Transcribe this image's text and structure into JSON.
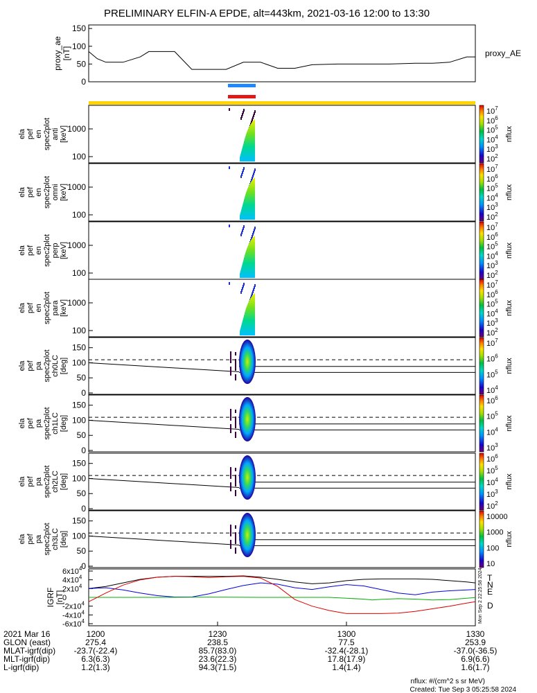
{
  "title": "PRELIMINARY ELFIN-A EPDE, alt=443km, 2021-03-16 12:00 to 13:30",
  "bars": {
    "blue": "#1e88ff",
    "red": "#e01818",
    "yellow": "#ffd400"
  },
  "chart_data": {
    "type": "line",
    "time_range": [
      "2021-03-16 12:00",
      "2021-03-16 13:30"
    ],
    "proxy_ae": {
      "ylabel": [
        "proxy_ae",
        "[nT]"
      ],
      "legend": "proxy_AE",
      "ylim": [
        0,
        160
      ],
      "yticks": [
        "150",
        "100",
        "50",
        "0"
      ],
      "t": [
        0,
        2,
        4,
        8,
        12,
        14,
        16,
        20,
        24,
        26,
        32,
        36,
        40,
        44,
        48,
        52,
        58,
        64,
        70,
        76,
        80,
        84,
        88,
        90
      ],
      "v": [
        85,
        65,
        55,
        55,
        70,
        85,
        85,
        85,
        35,
        35,
        35,
        55,
        55,
        38,
        38,
        48,
        50,
        50,
        50,
        52,
        52,
        55,
        70,
        70
      ]
    },
    "spectrograms": [
      {
        "ylabel": [
          "ela",
          "pef",
          "en",
          "spec2plot",
          "anti",
          "[keV]"
        ],
        "yticks": [
          "1000",
          "100"
        ],
        "ctick_labels": [
          "10^7",
          "10^6",
          "10^5",
          "10^4",
          "10^3",
          "10^2"
        ],
        "clabel": "nflux"
      },
      {
        "ylabel": [
          "ela",
          "pef",
          "en",
          "spec2plot",
          "omni",
          "[keV]"
        ],
        "yticks": [
          "1000",
          "100"
        ],
        "ctick_labels": [
          "10^7",
          "10^6",
          "10^5",
          "10^4",
          "10^3",
          "10^2"
        ],
        "clabel": "nflux"
      },
      {
        "ylabel": [
          "ela",
          "pef",
          "en",
          "spec2plot",
          "perp",
          "[keV]"
        ],
        "yticks": [
          "1000",
          "100"
        ],
        "ctick_labels": [
          "10^7",
          "10^6",
          "10^5",
          "10^4",
          "10^3",
          "10^2"
        ],
        "clabel": "nflux"
      },
      {
        "ylabel": [
          "ela",
          "pef",
          "en",
          "spec2plot",
          "para",
          "[keV]"
        ],
        "yticks": [
          "1000",
          "100"
        ],
        "ctick_labels": [
          "10^7",
          "10^6",
          "10^5",
          "10^4",
          "10^3",
          "10^2"
        ],
        "clabel": "nflux"
      }
    ],
    "pitch_angle": [
      {
        "ylabel": [
          "ela",
          "pef",
          "pa",
          "spec2plot",
          "ch0LC",
          "[deg]"
        ],
        "yticks": [
          "150",
          "100",
          "50",
          "0"
        ],
        "ctick_labels": [
          "10^7",
          "10^6",
          "10^5",
          "10^4"
        ],
        "clabel": "nflux"
      },
      {
        "ylabel": [
          "ela",
          "pef",
          "pa",
          "spec2plot",
          "ch1LC",
          "[deg]"
        ],
        "yticks": [
          "150",
          "100",
          "50",
          "0"
        ],
        "ctick_labels": [
          "10^6",
          "10^5",
          "10^4",
          "10^3"
        ],
        "clabel": "nflux"
      },
      {
        "ylabel": [
          "ela",
          "pef",
          "pa",
          "spec2plot",
          "ch2LC",
          "[deg]"
        ],
        "yticks": [
          "150",
          "100",
          "50",
          "0"
        ],
        "ctick_labels": [
          "10^6",
          "10^5",
          "10^4",
          "10^3",
          "10^2"
        ],
        "clabel": "nflux"
      },
      {
        "ylabel": [
          "ela",
          "pef",
          "pa",
          "spec2plot",
          "ch3LC",
          "[deg]"
        ],
        "yticks": [
          "150",
          "100",
          "50",
          "0"
        ],
        "ctick_labels": [
          "10000",
          "1000",
          "100",
          "10"
        ],
        "clabel": "nflux"
      }
    ],
    "igrf": {
      "ylabel": [
        "IGRF",
        "[nT]"
      ],
      "yticks": [
        "6x10^4",
        "4x10^4",
        "2x10^4",
        "0",
        "-2x10^4",
        "-4x10^4",
        "-6x10^4"
      ],
      "ylim": [
        -60000,
        60000
      ],
      "series": [
        {
          "name": "T",
          "color": "#000000",
          "t": [
            0,
            4,
            8,
            12,
            16,
            20,
            24,
            28,
            32,
            36,
            40,
            44,
            48,
            52,
            56,
            60,
            64,
            68,
            72,
            76,
            80,
            84,
            88,
            90
          ],
          "v": [
            20000,
            25000,
            33000,
            41000,
            46000,
            48000,
            48000,
            48000,
            48000,
            49000,
            46000,
            41000,
            35000,
            31000,
            33000,
            38000,
            41000,
            42000,
            42000,
            42000,
            41000,
            38000,
            35000,
            33000
          ]
        },
        {
          "name": "N",
          "color": "#0000dd",
          "t": [
            0,
            4,
            8,
            12,
            16,
            20,
            24,
            28,
            32,
            36,
            40,
            44,
            48,
            52,
            56,
            60,
            64,
            68,
            72,
            76,
            80,
            84,
            88,
            90
          ],
          "v": [
            20000,
            22000,
            17000,
            10000,
            4000,
            800,
            800,
            8000,
            18000,
            27000,
            33000,
            30000,
            22000,
            18000,
            24000,
            29000,
            26000,
            18000,
            10000,
            6000,
            12000,
            15000,
            17000,
            18000
          ]
        },
        {
          "name": "E",
          "color": "#00b000",
          "t": [
            0,
            8,
            16,
            24,
            32,
            40,
            48,
            56,
            60,
            64,
            66,
            68,
            72,
            76,
            80,
            84,
            88,
            90
          ],
          "v": [
            0,
            0,
            0,
            500,
            500,
            0,
            0,
            0,
            -2000,
            -4000,
            -6000,
            -4500,
            -3000,
            -4000,
            -6000,
            -5000,
            -2000,
            -500
          ]
        },
        {
          "name": "D",
          "color": "#dd0000",
          "t": [
            0,
            4,
            8,
            12,
            16,
            20,
            24,
            28,
            32,
            36,
            40,
            44,
            48,
            52,
            56,
            60,
            64,
            68,
            72,
            76,
            80,
            84,
            88,
            90
          ],
          "v": [
            -10000,
            10000,
            28000,
            40000,
            46000,
            48000,
            47000,
            45000,
            47000,
            48000,
            44000,
            25000,
            -5000,
            -20000,
            -30000,
            -37000,
            -37000,
            -37000,
            -36000,
            -32000,
            -26000,
            -20000,
            -13000,
            -10000
          ]
        }
      ],
      "side_label": "Mon Sep  2 22:25:58 2024"
    },
    "orbit_table": {
      "rows": [
        {
          "label": "2021 Mar 16",
          "values": [
            "1200",
            "1230",
            "1300",
            "1330"
          ]
        },
        {
          "label": "GLON (east)",
          "values": [
            "275.4",
            "238.5",
            "77.5",
            "253.9"
          ]
        },
        {
          "label": "MLAT-igrf(dip)",
          "values": [
            "-23.7(-22.4)",
            "85.7(83.0)",
            "-32.4(-28.1)",
            "-37.0(-36.5)"
          ]
        },
        {
          "label": "MLT-igrf(dip)",
          "values": [
            "6.3(6.3)",
            "23.6(22.3)",
            "17.8(17.9)",
            "6.9(6.6)"
          ]
        },
        {
          "label": "L-igrf(dip)",
          "values": [
            "1.2(1.3)",
            "94.3(71.5)",
            "1.4(1.4)",
            "1.6(1.7)"
          ]
        }
      ]
    }
  },
  "footer": {
    "units": "nflux: #/(cm^2 s sr MeV)",
    "created": "Created: Tue Sep  3 05:25:58 2024"
  }
}
